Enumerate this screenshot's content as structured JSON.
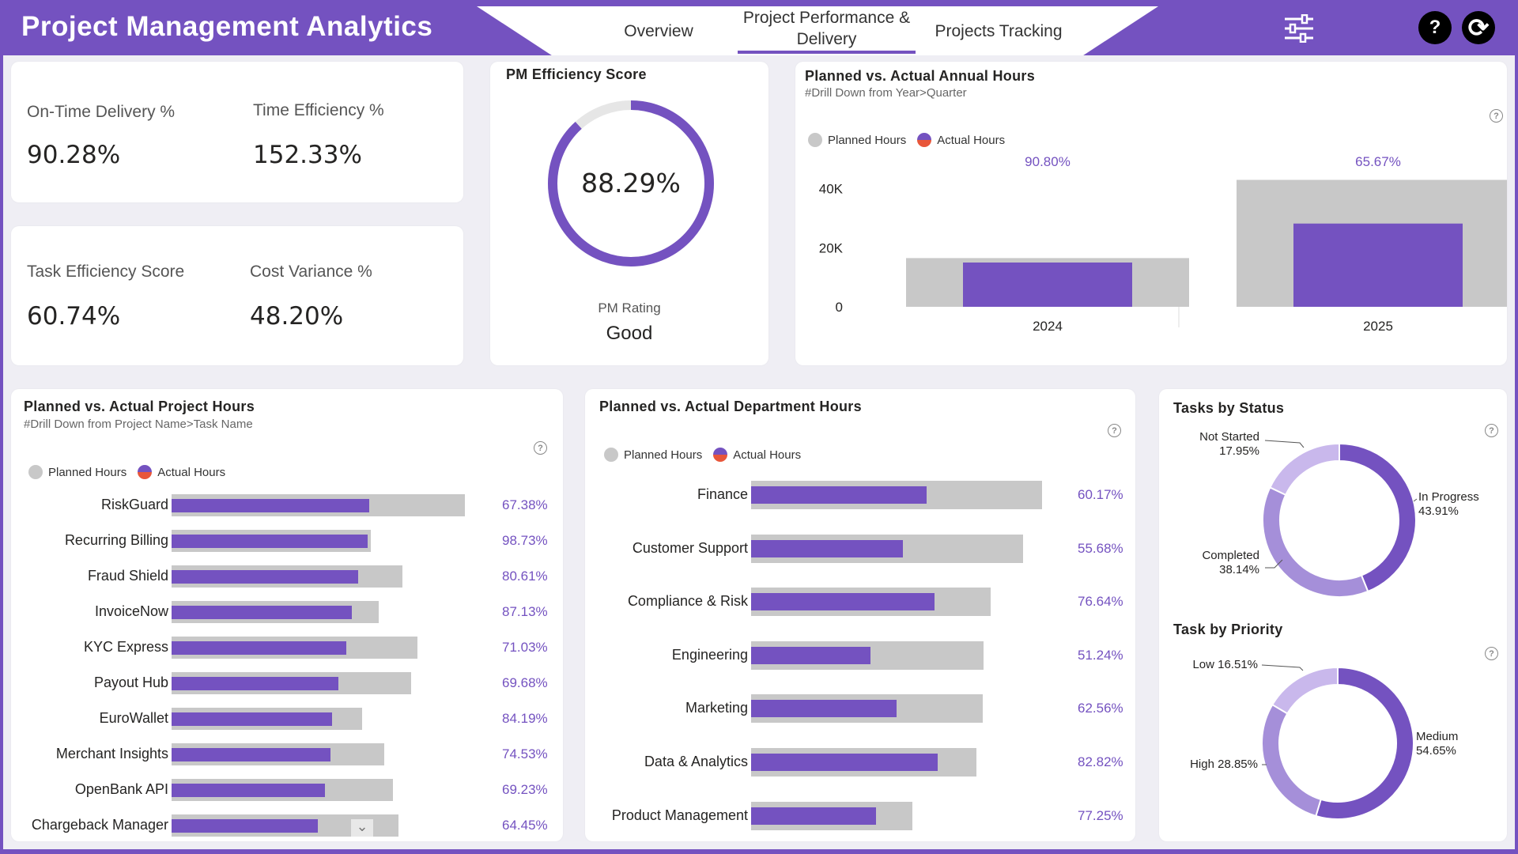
{
  "header": {
    "title": "Project Management Analytics",
    "tabs": [
      {
        "label": "Overview"
      },
      {
        "label": "Project Performance &\nDelivery"
      },
      {
        "label": "Projects Tracking"
      }
    ],
    "active_tab": 1,
    "icons": [
      "filter-sliders-icon",
      "help-icon",
      "refresh-icon"
    ],
    "help_glyph": "?",
    "refresh_glyph": "⟳"
  },
  "colors": {
    "accent": "#7452c0",
    "planned": "#c8c8c8",
    "light_purple": "#a58fd9",
    "lighter_purple": "#c9b8ec"
  },
  "kpis": {
    "on_time_label": "On-Time Delivery %",
    "on_time_value": "90.28%",
    "time_eff_label": "Time Efficiency %",
    "time_eff_value": "152.33%",
    "task_eff_label": "Task Efficiency Score",
    "task_eff_value": "60.74%",
    "cost_var_label": "Cost Variance %",
    "cost_var_value": "48.20%"
  },
  "pm_efficiency": {
    "title": "PM Efficiency Score",
    "value": "88.29%",
    "fraction": 0.8829,
    "rating_label": "PM Rating",
    "rating_value": "Good"
  },
  "legend": {
    "planned": "Planned Hours",
    "actual": "Actual Hours"
  },
  "help_glyph": "?",
  "annual_chart": {
    "title": "Planned vs. Actual Annual Hours",
    "subtitle": "#Drill Down from Year>Quarter",
    "y_ticks": [
      "40K",
      "20K",
      "0"
    ]
  },
  "project_chart": {
    "title": "Planned vs. Actual Project Hours",
    "subtitle": "#Drill Down from Project Name>Task Name",
    "scroll_glyph": "⌄"
  },
  "dept_chart": {
    "title": "Planned vs. Actual Department Hours"
  },
  "status_chart": {
    "title": "Tasks by Status",
    "labels": [
      {
        "name": "Not Started",
        "pct": "17.95%"
      },
      {
        "name": "In Progress",
        "pct": "43.91%"
      },
      {
        "name": "Completed",
        "pct": "38.14%"
      }
    ]
  },
  "priority_chart": {
    "title": "Task by Priority",
    "labels": [
      {
        "text": "Low 16.51%"
      },
      {
        "name": "Medium",
        "pct": "54.65%"
      },
      {
        "text": "High 28.85%"
      }
    ]
  },
  "chart_data": [
    {
      "type": "bar",
      "title": "Planned vs. Actual Annual Hours",
      "categories": [
        "2024",
        "2025"
      ],
      "series": [
        {
          "name": "Planned Hours",
          "values": [
            16500,
            43000
          ]
        },
        {
          "name": "Actual Hours",
          "values": [
            15000,
            28200
          ]
        }
      ],
      "data_labels": [
        "90.80%",
        "65.67%"
      ],
      "ylim": [
        0,
        45000
      ],
      "y_ticks": [
        0,
        20000,
        40000
      ]
    },
    {
      "type": "bar",
      "orientation": "horizontal",
      "title": "Planned vs. Actual Project Hours",
      "categories": [
        "RiskGuard",
        "Recurring Billing",
        "Fraud Shield",
        "InvoiceNow",
        "KYC Express",
        "Payout Hub",
        "EuroWallet",
        "Merchant Insights",
        "OpenBank API",
        "Chargeback Manager"
      ],
      "series": [
        {
          "name": "Planned Hours",
          "values": [
            1000,
            678,
            788,
            706,
            838,
            818,
            650,
            726,
            754,
            774
          ]
        },
        {
          "name": "Actual Hours",
          "values": [
            674,
            669,
            635,
            615,
            595,
            570,
            547,
            541,
            522,
            499
          ]
        }
      ],
      "data_labels": [
        "67.38%",
        "98.73%",
        "80.61%",
        "87.13%",
        "71.03%",
        "69.68%",
        "84.19%",
        "74.53%",
        "69.23%",
        "64.45%"
      ]
    },
    {
      "type": "bar",
      "orientation": "horizontal",
      "title": "Planned vs. Actual Department Hours",
      "categories": [
        "Finance",
        "Customer Support",
        "Compliance & Risk",
        "Engineering",
        "Marketing",
        "Data & Analytics",
        "Product Management"
      ],
      "series": [
        {
          "name": "Planned Hours",
          "values": [
            1000,
            936,
            824,
            800,
            797,
            775,
            554
          ]
        },
        {
          "name": "Actual Hours",
          "values": [
            602,
            521,
            631,
            410,
            499,
            642,
            428
          ]
        }
      ],
      "data_labels": [
        "60.17%",
        "55.68%",
        "76.64%",
        "51.24%",
        "62.56%",
        "82.82%",
        "77.25%"
      ]
    },
    {
      "type": "pie",
      "title": "Tasks by Status",
      "categories": [
        "In Progress",
        "Completed",
        "Not Started"
      ],
      "values": [
        43.91,
        38.14,
        17.95
      ],
      "colors": [
        "#7452c0",
        "#a58fd9",
        "#c9b8ec"
      ]
    },
    {
      "type": "pie",
      "title": "Task by Priority",
      "categories": [
        "Medium",
        "High",
        "Low"
      ],
      "values": [
        54.65,
        28.85,
        16.51
      ],
      "colors": [
        "#7452c0",
        "#a58fd9",
        "#c9b8ec"
      ]
    }
  ]
}
